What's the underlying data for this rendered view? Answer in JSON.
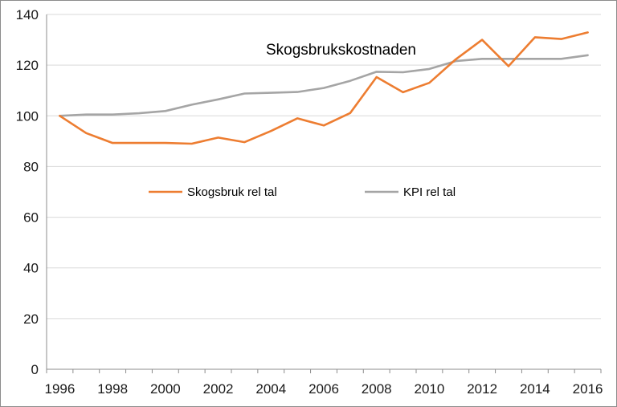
{
  "chart_data": {
    "type": "line",
    "title": "Skogsbrukskostnaden",
    "xlabel": "",
    "ylabel": "",
    "ylim": [
      0,
      140
    ],
    "y_ticks": [
      0,
      20,
      40,
      60,
      80,
      100,
      120,
      140
    ],
    "x_ticks": [
      "1996",
      "1998",
      "2000",
      "2002",
      "2004",
      "2006",
      "2008",
      "2010",
      "2012",
      "2014",
      "2016"
    ],
    "grid": "horizontal",
    "legend_placement": "middle",
    "x": [
      1996,
      1997,
      1998,
      1999,
      2000,
      2001,
      2002,
      2003,
      2004,
      2005,
      2006,
      2007,
      2008,
      2009,
      2010,
      2011,
      2012,
      2013,
      2014,
      2015,
      2016
    ],
    "series": [
      {
        "name": "Skogsbruk rel tal",
        "color": "#ed7d31",
        "values": [
          100,
          93.2,
          89.3,
          89.3,
          89.3,
          89.0,
          91.4,
          89.6,
          94.0,
          99.0,
          96.2,
          101.1,
          115.3,
          109.3,
          113.0,
          122.3,
          130.0,
          119.6,
          131.0,
          130.3,
          132.9
        ]
      },
      {
        "name": "KPI rel tal",
        "color": "#a5a5a5",
        "values": [
          100,
          100.5,
          100.5,
          101.0,
          101.9,
          104.4,
          106.5,
          108.8,
          109.1,
          109.4,
          111.0,
          113.8,
          117.4,
          117.2,
          118.5,
          121.6,
          122.5,
          122.5,
          122.5,
          122.5,
          123.9
        ]
      }
    ]
  }
}
